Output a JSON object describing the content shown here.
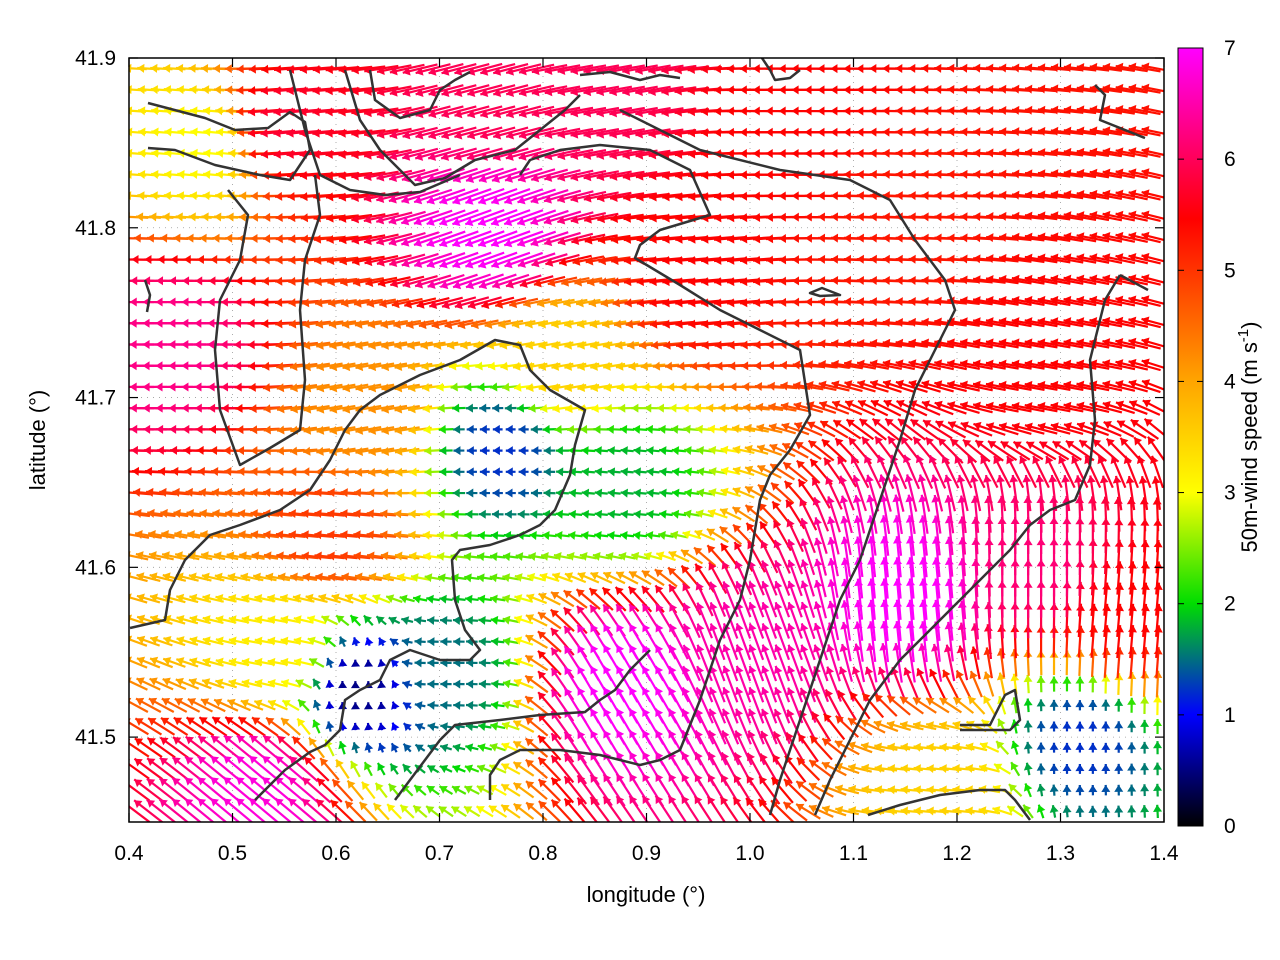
{
  "chart_data": {
    "type": "vector-field",
    "xlabel": "longitude (°)",
    "ylabel": "latitude (°)",
    "colorbar_label_main": "50m-wind speed (m s",
    "colorbar_label_sup": "-1",
    "colorbar_label_close": ")",
    "xlim": [
      0.4,
      1.4
    ],
    "ylim": [
      41.45,
      41.9
    ],
    "x_ticks": [
      0.4,
      0.5,
      0.6,
      0.7,
      0.8,
      0.9,
      1.0,
      1.1,
      1.2,
      1.3,
      1.4
    ],
    "x_tick_labels": [
      "0.4",
      "0.5",
      "0.6",
      "0.7",
      "0.8",
      "0.9",
      "1.0",
      "1.1",
      "1.2",
      "1.3",
      "1.4"
    ],
    "y_ticks": [
      41.5,
      41.6,
      41.7,
      41.8,
      41.9
    ],
    "y_tick_labels": [
      "41.5",
      "41.6",
      "41.7",
      "41.8",
      "41.9"
    ],
    "colorbar_range": [
      0,
      7
    ],
    "colorbar_ticks": [
      0,
      1,
      2,
      3,
      4,
      5,
      6,
      7
    ],
    "colorbar_tick_labels": [
      "0",
      "1",
      "2",
      "3",
      "4",
      "5",
      "6",
      "7"
    ],
    "colormap": [
      "#000000",
      "#0000ff",
      "#00dd00",
      "#ffff00",
      "#ffa500",
      "#ff0000",
      "#ff00ff"
    ],
    "grid": "dotted",
    "vector_grid_spacing_deg": 0.0125,
    "regions": [
      {
        "center": [
          0.45,
          41.73
        ],
        "speed": 6.3,
        "dir_deg": 180
      },
      {
        "center": [
          0.48,
          41.85
        ],
        "speed": 3.0,
        "dir_deg": 175
      },
      {
        "center": [
          0.55,
          41.86
        ],
        "speed": 5.8,
        "dir_deg": 185
      },
      {
        "center": [
          0.6,
          41.62
        ],
        "speed": 5.0,
        "dir_deg": 175
      },
      {
        "center": [
          0.75,
          41.8
        ],
        "speed": 7.0,
        "dir_deg": 200
      },
      {
        "center": [
          0.75,
          41.87
        ],
        "speed": 6.0,
        "dir_deg": 195
      },
      {
        "center": [
          0.85,
          41.88
        ],
        "speed": 6.0,
        "dir_deg": 190
      },
      {
        "center": [
          0.95,
          41.77
        ],
        "speed": 5.5,
        "dir_deg": 185
      },
      {
        "center": [
          1.05,
          41.86
        ],
        "speed": 5.5,
        "dir_deg": 180
      },
      {
        "center": [
          1.15,
          41.8
        ],
        "speed": 5.3,
        "dir_deg": 178
      },
      {
        "center": [
          1.28,
          41.72
        ],
        "speed": 5.5,
        "dir_deg": 170
      },
      {
        "center": [
          0.63,
          41.69
        ],
        "speed": 4.2,
        "dir_deg": 190
      },
      {
        "center": [
          0.76,
          41.67
        ],
        "speed": 1.2,
        "dir_deg": 180
      },
      {
        "center": [
          0.88,
          41.65
        ],
        "speed": 1.8,
        "dir_deg": 175
      },
      {
        "center": [
          0.82,
          41.72
        ],
        "speed": 3.5,
        "dir_deg": 190
      },
      {
        "center": [
          0.7,
          41.54
        ],
        "speed": 1.5,
        "dir_deg": 180
      },
      {
        "center": [
          0.62,
          41.53
        ],
        "speed": 0.5,
        "dir_deg": 90
      },
      {
        "center": [
          0.55,
          41.55
        ],
        "speed": 3.2,
        "dir_deg": 170
      },
      {
        "center": [
          0.88,
          41.53
        ],
        "speed": 7.0,
        "dir_deg": 120
      },
      {
        "center": [
          1.0,
          41.55
        ],
        "speed": 6.5,
        "dir_deg": 110
      },
      {
        "center": [
          1.15,
          41.58
        ],
        "speed": 7.0,
        "dir_deg": 95
      },
      {
        "center": [
          1.28,
          41.6
        ],
        "speed": 6.2,
        "dir_deg": 90
      },
      {
        "center": [
          1.36,
          41.57
        ],
        "speed": 5.5,
        "dir_deg": 85
      },
      {
        "center": [
          1.32,
          41.5
        ],
        "speed": 1.2,
        "dir_deg": 90
      },
      {
        "center": [
          0.53,
          41.47
        ],
        "speed": 6.8,
        "dir_deg": 140
      },
      {
        "center": [
          1.18,
          41.47
        ],
        "speed": 3.5,
        "dir_deg": 175
      }
    ]
  }
}
